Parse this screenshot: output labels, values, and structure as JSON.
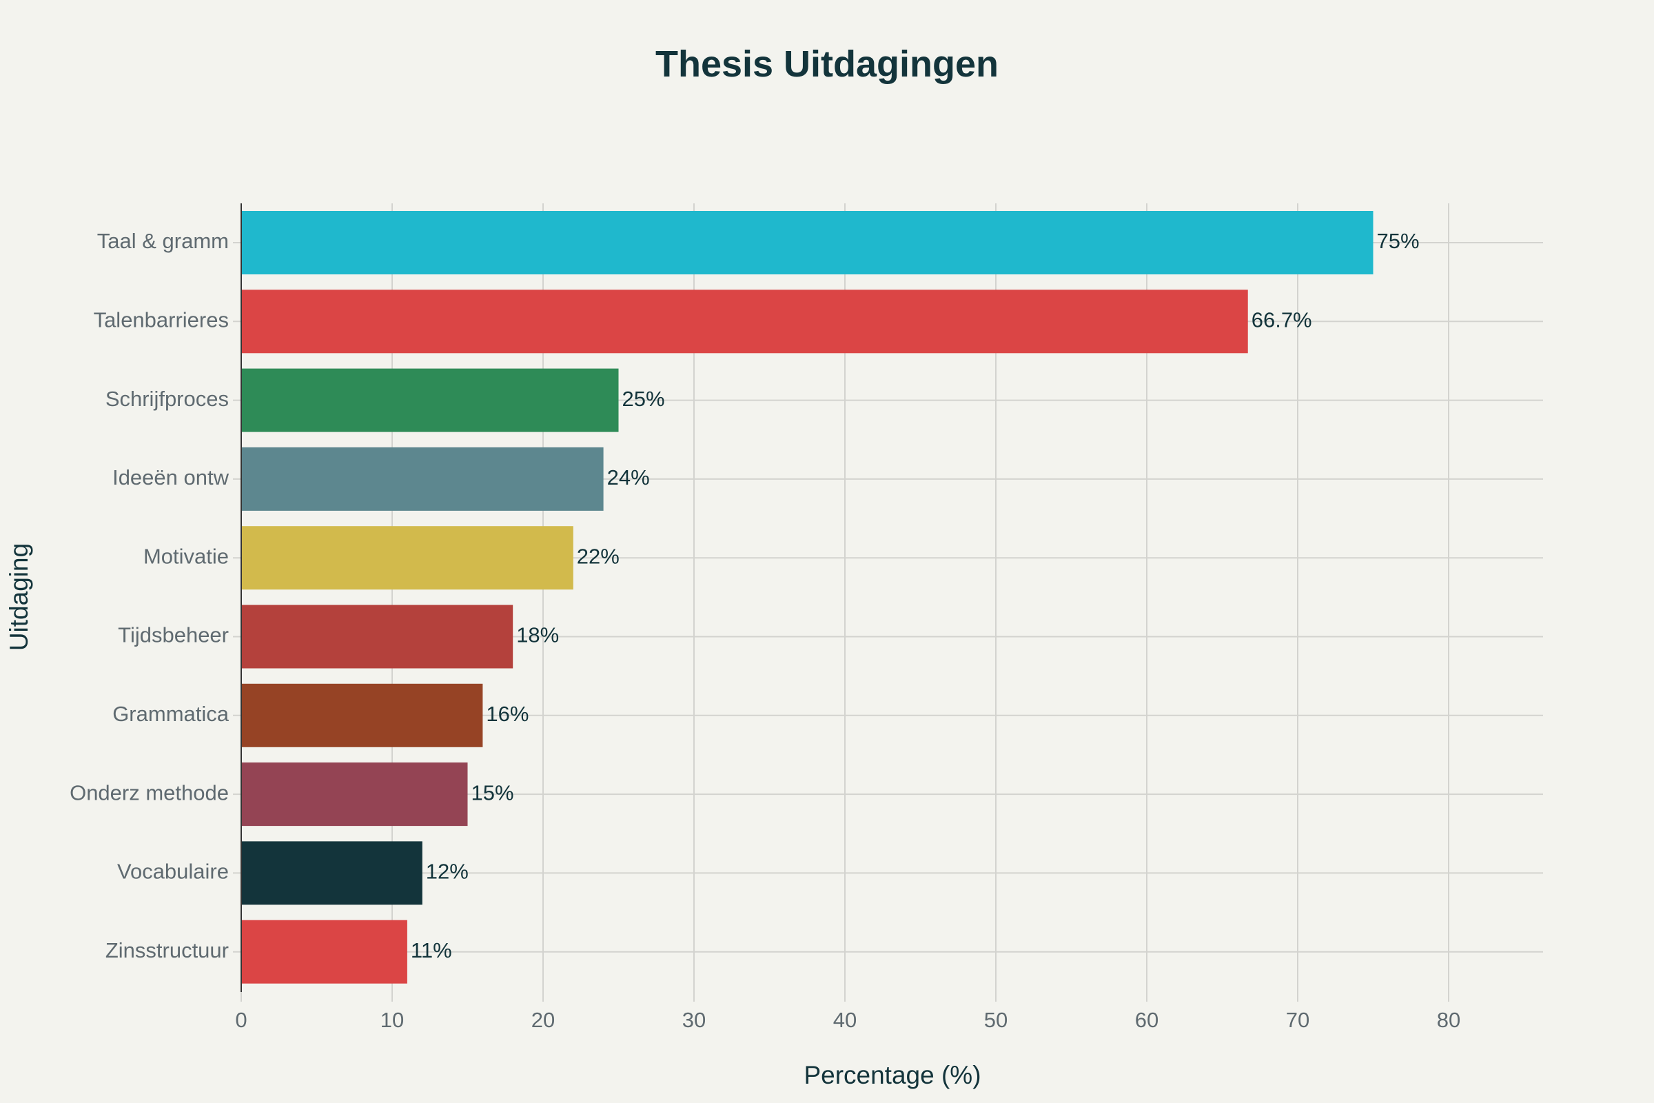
{
  "chart_data": {
    "type": "bar",
    "orientation": "horizontal",
    "title": "Thesis Uitdagingen",
    "xlabel": "Percentage (%)",
    "ylabel": "Uitdaging",
    "xlim": [
      0,
      86.3
    ],
    "xticks": [
      0,
      10,
      20,
      30,
      40,
      50,
      60,
      70,
      80
    ],
    "grid": true,
    "categories": [
      "Taal & gramm",
      "Talenbarrieres",
      "Schrijfproces",
      "Ideeën ontw",
      "Motivatie",
      "Tijdsbeheer",
      "Grammatica",
      "Onderz methode",
      "Vocabulaire",
      "Zinsstructuur"
    ],
    "values": [
      75,
      66.7,
      25,
      24,
      22,
      18,
      16,
      15,
      12,
      11
    ],
    "data_labels": [
      "75%",
      "66.7%",
      "25%",
      "24%",
      "22%",
      "18%",
      "16%",
      "15%",
      "12%",
      "11%"
    ],
    "colors": [
      "#1fb8cd",
      "#db4545",
      "#2e8b57",
      "#5d878f",
      "#d2ba4c",
      "#b4413c",
      "#964325",
      "#944454",
      "#13343b",
      "#db4545"
    ]
  }
}
